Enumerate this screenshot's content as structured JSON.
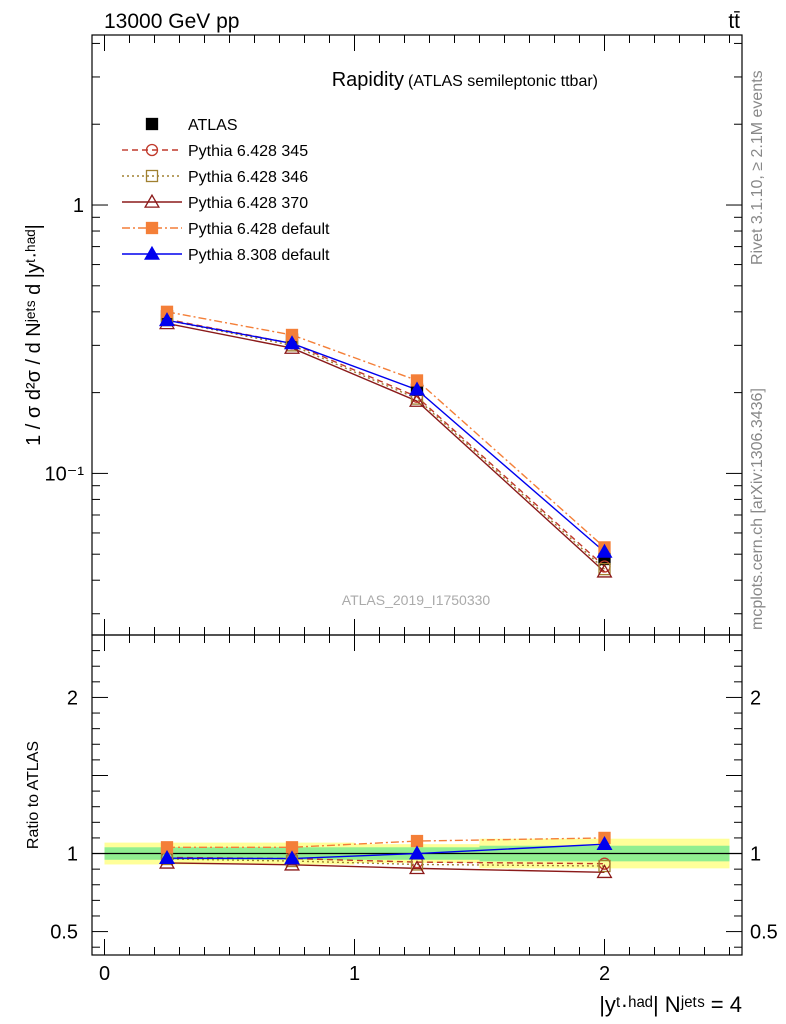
{
  "header": {
    "energy_label": "13000 GeV pp",
    "process_label": "tt̄"
  },
  "side_labels": {
    "rivet": "Rivet 3.1.10, ≥ 2.1M events",
    "mcplots": "mcplots.cern.ch [arXiv:1306.3436]"
  },
  "analysis_id": "ATLAS_2019_I1750330",
  "chart_data": [
    {
      "type": "line",
      "panel": "main",
      "title": "Rapidity",
      "subtitle": "(ATLAS semileptonic ttbar)",
      "ylabel": "1 / σ d²σ / d Nʲᵉᵗˢ d |yᵗ·ʰᵃᵈ|",
      "yscale": "log",
      "ylim": [
        0.025,
        4.3
      ],
      "xlim": [
        -0.05,
        2.55
      ],
      "y_ticks": [
        {
          "value": 0.1,
          "label": "10⁻¹"
        },
        {
          "value": 1,
          "label": "1"
        }
      ],
      "x": [
        0.25,
        0.75,
        1.25,
        2.0
      ],
      "legend_position": "top-left",
      "series": [
        {
          "name": "ATLAS",
          "color": "#000000",
          "marker": "square-filled",
          "line": "none",
          "values": [
            0.385,
            0.315,
            0.205,
            0.048
          ]
        },
        {
          "name": "Pythia 6.428 345",
          "color": "#c0392b",
          "marker": "circle-open",
          "line": "dashed",
          "values": [
            0.375,
            0.305,
            0.193,
            0.045
          ]
        },
        {
          "name": "Pythia 6.428 346",
          "color": "#a08030",
          "marker": "square-open",
          "line": "dotted",
          "values": [
            0.372,
            0.3,
            0.19,
            0.044
          ]
        },
        {
          "name": "Pythia 6.428 370",
          "color": "#8b1a1a",
          "marker": "triangle-open",
          "line": "solid",
          "values": [
            0.362,
            0.293,
            0.186,
            0.043
          ]
        },
        {
          "name": "Pythia 6.428 default",
          "color": "#f47f38",
          "marker": "square-filled",
          "line": "dashdot",
          "values": [
            0.4,
            0.328,
            0.222,
            0.053
          ]
        },
        {
          "name": "Pythia 8.308 default",
          "color": "#0000ee",
          "marker": "triangle-filled",
          "line": "solid",
          "values": [
            0.372,
            0.305,
            0.205,
            0.051
          ]
        }
      ]
    },
    {
      "type": "line",
      "panel": "ratio",
      "ylabel": "Ratio to ATLAS",
      "xlabel": "|yᵗ·ʰᵃᵈ| Nʲᵉᵗˢ = 4",
      "ylim": [
        0.35,
        2.4
      ],
      "xlim": [
        -0.05,
        2.55
      ],
      "y_ticks": [
        {
          "value": 0.5,
          "label": "0.5"
        },
        {
          "value": 1,
          "label": "1"
        },
        {
          "value": 2,
          "label": "2"
        }
      ],
      "x_ticks": [
        {
          "value": 0,
          "label": "0"
        },
        {
          "value": 1,
          "label": "1"
        },
        {
          "value": 2,
          "label": "2"
        }
      ],
      "bins": [
        [
          0,
          0.5
        ],
        [
          0.5,
          1.0
        ],
        [
          1.0,
          1.5
        ],
        [
          1.5,
          2.5
        ]
      ],
      "x": [
        0.25,
        0.75,
        1.25,
        2.0
      ],
      "bands": {
        "inner": {
          "color": "#90ee90",
          "half_width": [
            0.04,
            0.04,
            0.04,
            0.05
          ]
        },
        "outer": {
          "color": "#ffff99",
          "half_width": [
            0.07,
            0.07,
            0.06,
            0.095
          ]
        }
      },
      "series": [
        {
          "name": "Pythia 6.428 345",
          "color": "#c0392b",
          "marker": "circle-open",
          "line": "dashed",
          "values": [
            0.975,
            0.968,
            0.945,
            0.935
          ]
        },
        {
          "name": "Pythia 6.428 346",
          "color": "#a08030",
          "marker": "square-open",
          "line": "dotted",
          "values": [
            0.965,
            0.952,
            0.93,
            0.92
          ]
        },
        {
          "name": "Pythia 6.428 370",
          "color": "#8b1a1a",
          "marker": "triangle-open",
          "line": "solid",
          "values": [
            0.94,
            0.928,
            0.905,
            0.88
          ]
        },
        {
          "name": "Pythia 6.428 default",
          "color": "#f47f38",
          "marker": "square-filled",
          "line": "dashdot",
          "values": [
            1.04,
            1.04,
            1.08,
            1.1
          ]
        },
        {
          "name": "Pythia 8.308 default",
          "color": "#0000ee",
          "marker": "triangle-filled",
          "line": "solid",
          "values": [
            0.97,
            0.968,
            1.0,
            1.06
          ]
        }
      ]
    }
  ]
}
